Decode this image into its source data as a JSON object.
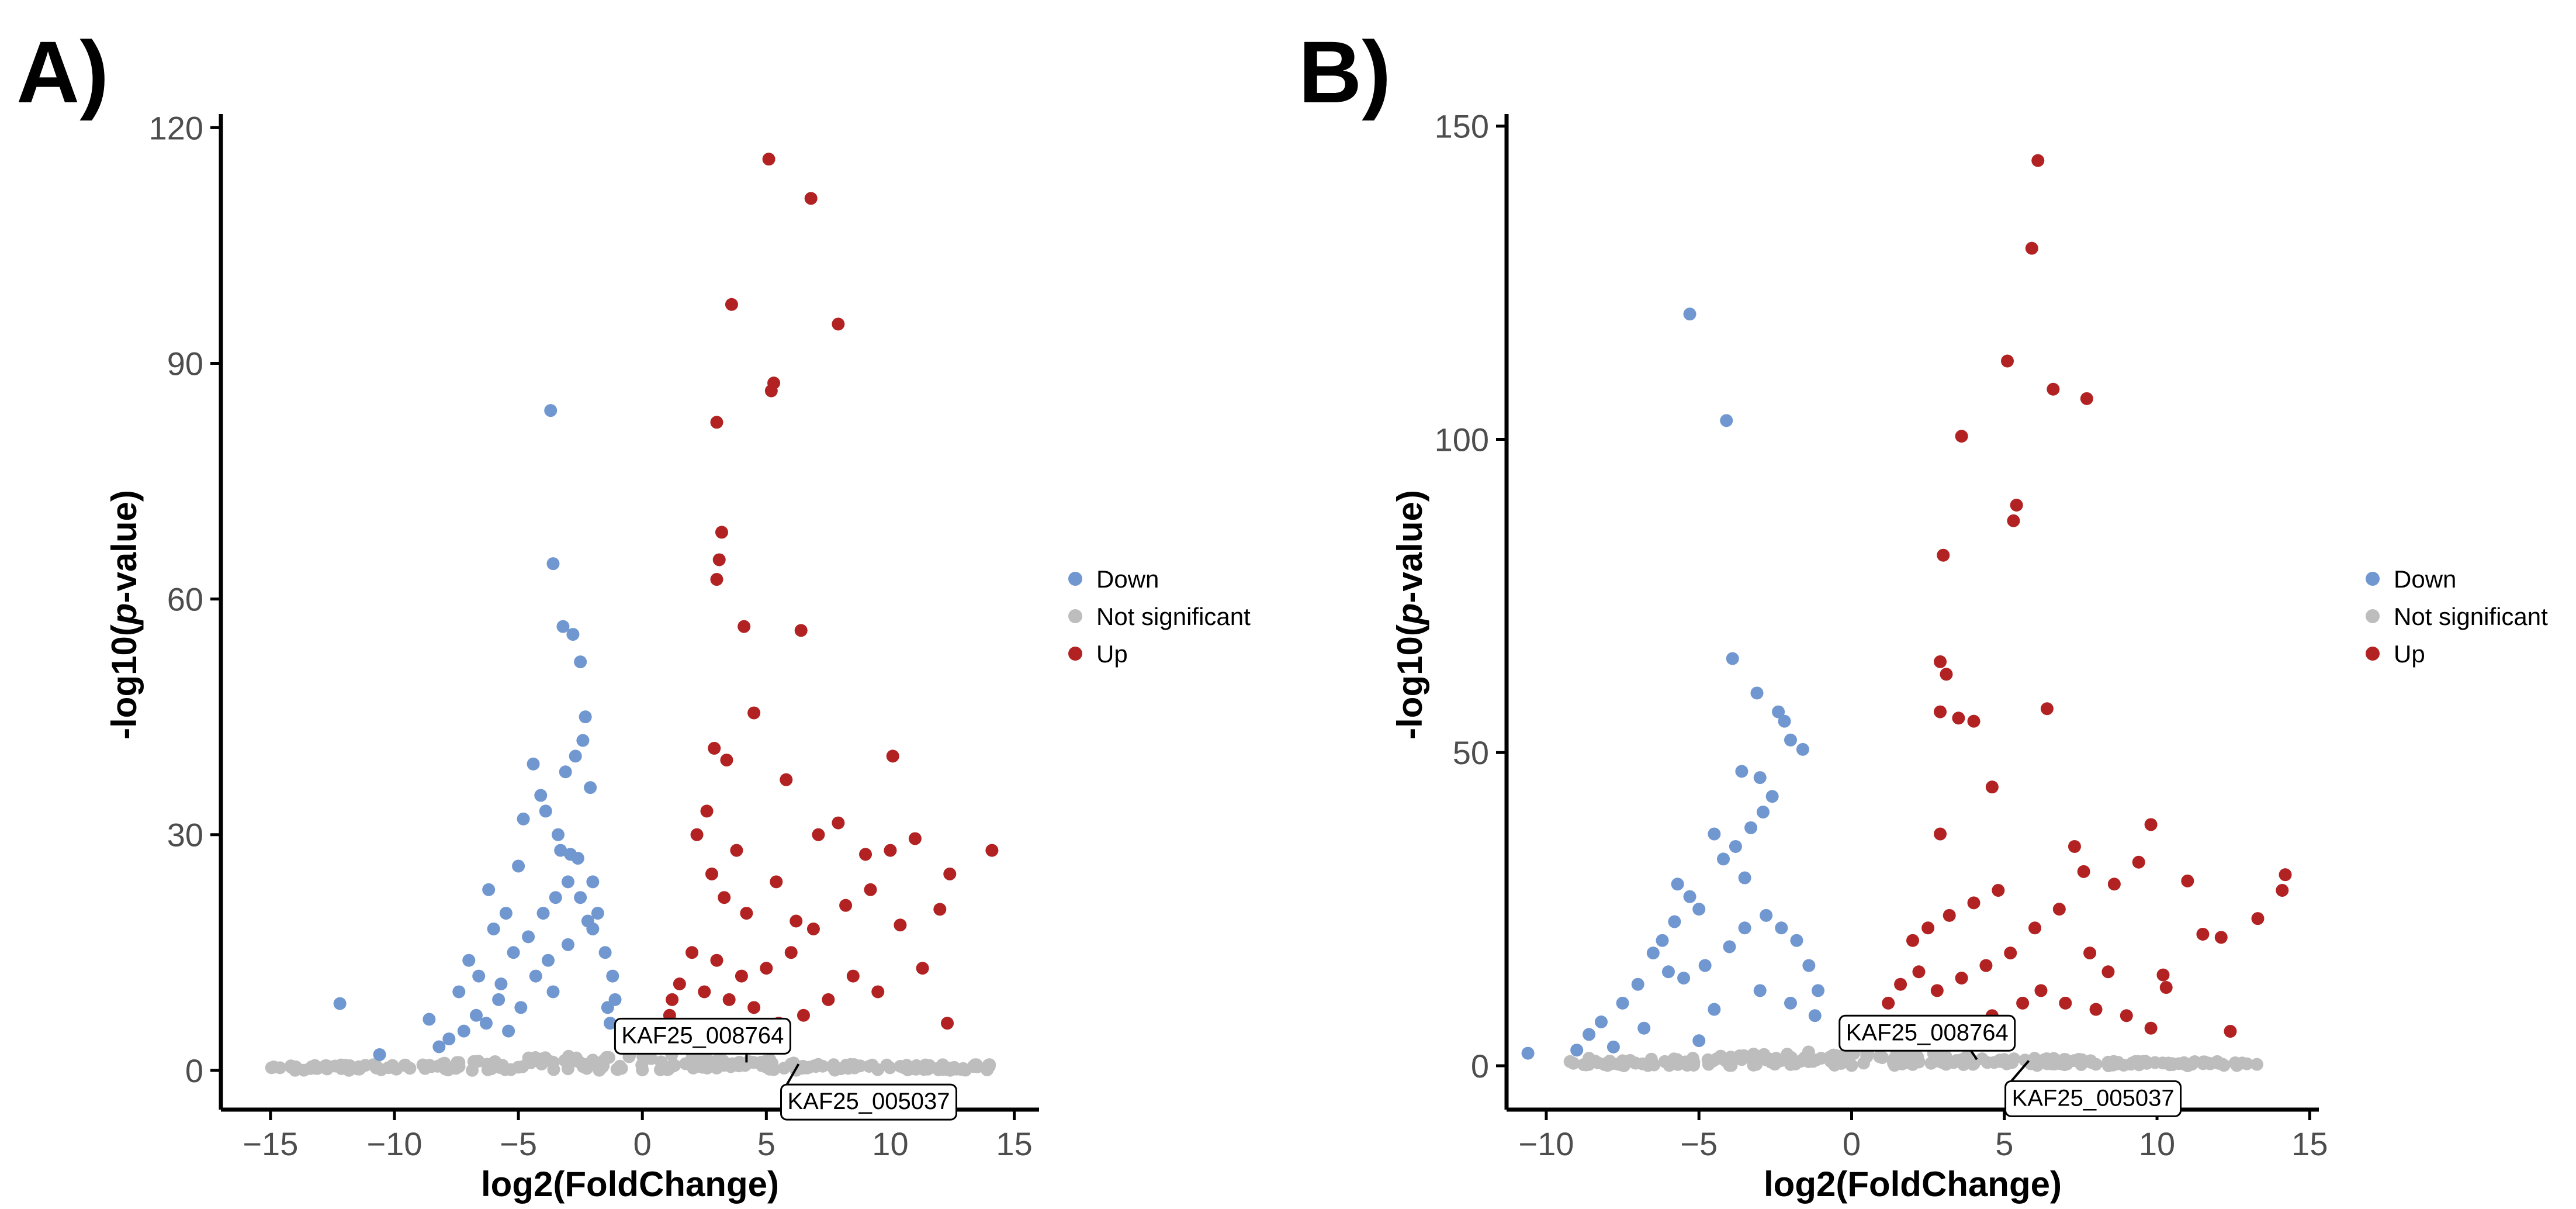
{
  "panels": [
    {
      "label": "A)"
    },
    {
      "label": "B)"
    }
  ],
  "colors": {
    "down": "#7097d0",
    "not_significant": "#bdbdbd",
    "up": "#b22222",
    "axis": "#000000",
    "tick_label": "#4d4d4d"
  },
  "chart_data": [
    {
      "type": "scatter",
      "title": "",
      "xlabel": "log2(FoldChange)",
      "ylabel_prefix": "-log10(",
      "ylabel_italic": "p",
      "ylabel_suffix": "-value)",
      "xlim": [
        -17,
        16
      ],
      "ylim": [
        -5,
        121
      ],
      "xticks": [
        -15,
        -10,
        -5,
        0,
        5,
        10,
        15
      ],
      "xtick_labels": [
        "−15",
        "−10",
        "−5",
        "0",
        "5",
        "10",
        "15"
      ],
      "yticks": [
        0,
        30,
        60,
        90,
        120
      ],
      "ytick_labels": [
        "0",
        "30",
        "60",
        "90",
        "120"
      ],
      "legend": {
        "position": "right",
        "entries": [
          "Down",
          "Not significant",
          "Up"
        ]
      },
      "annotations": [
        {
          "text": "KAF25_008764",
          "x": 4.2,
          "y": 1.0
        },
        {
          "text": "KAF25_005037",
          "x": 6.3,
          "y": 0.8
        }
      ],
      "series": [
        {
          "name": "Down",
          "points": [
            [
              -3.7,
              84
            ],
            [
              -3.6,
              64.5
            ],
            [
              -3.2,
              56.5
            ],
            [
              -2.8,
              55.5
            ],
            [
              -2.5,
              52
            ],
            [
              -2.3,
              45
            ],
            [
              -2.1,
              36
            ],
            [
              -2.7,
              40
            ],
            [
              -2.4,
              42
            ],
            [
              -3.1,
              38
            ],
            [
              -4.4,
              39
            ],
            [
              -4.1,
              35
            ],
            [
              -3.9,
              33
            ],
            [
              -4.8,
              32
            ],
            [
              -3.4,
              30
            ],
            [
              -5.0,
              26
            ],
            [
              -3.3,
              28
            ],
            [
              -2.9,
              27.5
            ],
            [
              -2.6,
              27
            ],
            [
              -2.0,
              24
            ],
            [
              -5.5,
              20
            ],
            [
              -6.0,
              18
            ],
            [
              -6.2,
              23
            ],
            [
              -7.0,
              14
            ],
            [
              -7.4,
              10
            ],
            [
              -6.6,
              12
            ],
            [
              -5.7,
              11
            ],
            [
              -12.2,
              8.5
            ],
            [
              -10.6,
              2
            ],
            [
              -8.6,
              6.5
            ],
            [
              -8.2,
              3
            ],
            [
              -7.8,
              4
            ],
            [
              -7.2,
              5
            ],
            [
              -6.7,
              7
            ],
            [
              -5.2,
              15
            ],
            [
              -4.6,
              17
            ],
            [
              -4.0,
              20
            ],
            [
              -3.5,
              22
            ],
            [
              -3.0,
              24
            ],
            [
              -2.5,
              22
            ],
            [
              -2.0,
              18
            ],
            [
              -1.5,
              15
            ],
            [
              -1.2,
              12
            ],
            [
              -1.1,
              9
            ],
            [
              -4.3,
              12
            ],
            [
              -3.8,
              14
            ],
            [
              -3.0,
              16
            ],
            [
              -2.2,
              19
            ],
            [
              -1.8,
              20
            ],
            [
              -1.4,
              8
            ],
            [
              -1.3,
              6
            ],
            [
              -5.8,
              9
            ],
            [
              -6.3,
              6
            ],
            [
              -4.9,
              8
            ],
            [
              -5.4,
              5
            ],
            [
              -3.6,
              10
            ]
          ]
        },
        {
          "name": "Not significant",
          "points": [
            [
              -7.4,
              1.0
            ],
            [
              -6.2,
              0.6
            ],
            [
              -5.0,
              0.4
            ],
            [
              -3.0,
              0.2
            ],
            [
              -1.0,
              0.1
            ],
            [
              1.0,
              0.1
            ],
            [
              3.0,
              0.3
            ],
            [
              5.0,
              0.4
            ],
            [
              6.0,
              0.8
            ],
            [
              -4.0,
              1.5
            ],
            [
              2.0,
              1.2
            ],
            [
              -2.0,
              1.3
            ],
            [
              4.5,
              1.0
            ],
            [
              7.0,
              0.5
            ],
            [
              0.0,
              0.05
            ]
          ]
        },
        {
          "name": "Up",
          "points": [
            [
              5.1,
              116
            ],
            [
              6.8,
              111
            ],
            [
              3.6,
              97.5
            ],
            [
              7.9,
              95
            ],
            [
              5.3,
              87.5
            ],
            [
              5.2,
              86.5
            ],
            [
              3.0,
              82.5
            ],
            [
              3.2,
              68.5
            ],
            [
              3.1,
              65
            ],
            [
              3.0,
              62.5
            ],
            [
              4.1,
              56.5
            ],
            [
              6.4,
              56
            ],
            [
              4.5,
              45.5
            ],
            [
              2.9,
              41
            ],
            [
              3.4,
              39.5
            ],
            [
              10.1,
              40
            ],
            [
              5.8,
              37
            ],
            [
              14.1,
              28
            ],
            [
              11.0,
              29.5
            ],
            [
              12.4,
              25
            ],
            [
              10.0,
              28
            ],
            [
              9.0,
              27.5
            ],
            [
              7.9,
              31.5
            ],
            [
              7.1,
              30
            ],
            [
              12.0,
              20.5
            ],
            [
              10.4,
              18.5
            ],
            [
              11.3,
              13
            ],
            [
              12.3,
              6
            ],
            [
              9.2,
              23
            ],
            [
              8.2,
              21
            ],
            [
              6.9,
              18
            ],
            [
              6.0,
              15
            ],
            [
              5.0,
              13
            ],
            [
              4.0,
              12
            ],
            [
              3.0,
              14
            ],
            [
              2.0,
              15
            ],
            [
              1.5,
              11
            ],
            [
              1.2,
              9
            ],
            [
              1.1,
              7
            ],
            [
              1.0,
              5
            ],
            [
              2.5,
              10
            ],
            [
              3.5,
              9
            ],
            [
              4.5,
              8
            ],
            [
              5.5,
              6
            ],
            [
              6.5,
              7
            ],
            [
              7.5,
              9
            ],
            [
              8.5,
              12
            ],
            [
              9.5,
              10
            ],
            [
              2.2,
              30
            ],
            [
              2.8,
              25
            ],
            [
              3.3,
              22
            ],
            [
              4.2,
              20
            ],
            [
              5.4,
              24
            ],
            [
              6.2,
              19
            ],
            [
              2.6,
              33
            ],
            [
              3.8,
              28
            ]
          ]
        }
      ]
    },
    {
      "type": "scatter",
      "title": "",
      "xlabel": "log2(FoldChange)",
      "ylabel_prefix": "-log10(",
      "ylabel_italic": "p",
      "ylabel_suffix": "-value)",
      "xlim": [
        -11.3,
        15.3
      ],
      "ylim": [
        -7,
        151
      ],
      "xticks": [
        -10,
        -5,
        0,
        5,
        10,
        15
      ],
      "xtick_labels": [
        "−10",
        "−5",
        "0",
        "5",
        "10",
        "15"
      ],
      "yticks": [
        0,
        50,
        100,
        150
      ],
      "ytick_labels": [
        "0",
        "50",
        "100",
        "150"
      ],
      "legend": {
        "position": "right",
        "entries": [
          "Down",
          "Not significant",
          "Up"
        ]
      },
      "annotations": [
        {
          "text": "KAF25_008764",
          "x": 4.1,
          "y": 1.0
        },
        {
          "text": "KAF25_005037",
          "x": 5.8,
          "y": 0.8
        }
      ],
      "series": [
        {
          "name": "Down",
          "points": [
            [
              -5.3,
              120
            ],
            [
              -4.1,
              103
            ],
            [
              -3.9,
              65
            ],
            [
              -3.1,
              59.5
            ],
            [
              -2.4,
              56.5
            ],
            [
              -2.2,
              55
            ],
            [
              -2.0,
              52
            ],
            [
              -1.6,
              50.5
            ],
            [
              -3.6,
              47
            ],
            [
              -3.0,
              46
            ],
            [
              -2.6,
              43
            ],
            [
              -2.9,
              40.5
            ],
            [
              -3.3,
              38
            ],
            [
              -4.5,
              37
            ],
            [
              -4.2,
              33
            ],
            [
              -3.8,
              35
            ],
            [
              -3.5,
              30
            ],
            [
              -5.7,
              29
            ],
            [
              -5.3,
              27
            ],
            [
              -5.0,
              25
            ],
            [
              -5.8,
              23
            ],
            [
              -6.2,
              20
            ],
            [
              -6.5,
              18
            ],
            [
              -7.0,
              13
            ],
            [
              -7.5,
              10
            ],
            [
              -8.2,
              7
            ],
            [
              -8.6,
              5
            ],
            [
              -10.6,
              2
            ],
            [
              -6.0,
              15
            ],
            [
              -5.5,
              14
            ],
            [
              -4.8,
              16
            ],
            [
              -4.0,
              19
            ],
            [
              -3.5,
              22
            ],
            [
              -2.8,
              24
            ],
            [
              -2.3,
              22
            ],
            [
              -1.8,
              20
            ],
            [
              -1.4,
              16
            ],
            [
              -1.1,
              12
            ],
            [
              -1.2,
              8
            ],
            [
              -2.0,
              10
            ],
            [
              -3.0,
              12
            ],
            [
              -4.5,
              9
            ],
            [
              -6.8,
              6
            ],
            [
              -7.8,
              3
            ],
            [
              -9.0,
              2.5
            ],
            [
              -5.0,
              4
            ]
          ]
        },
        {
          "name": "Not significant",
          "points": [
            [
              -8.6,
              1.2
            ],
            [
              -7.5,
              0.8
            ],
            [
              -6.0,
              0.5
            ],
            [
              -4.0,
              0.3
            ],
            [
              -2.0,
              0.2
            ],
            [
              0.0,
              0.05
            ],
            [
              2.0,
              0.2
            ],
            [
              4.0,
              0.3
            ],
            [
              6.0,
              0.5
            ],
            [
              7.0,
              1.0
            ],
            [
              -3.0,
              1.5
            ],
            [
              3.0,
              1.6
            ],
            [
              -1.0,
              1.2
            ],
            [
              1.0,
              1.3
            ],
            [
              5.0,
              1.0
            ]
          ]
        },
        {
          "name": "Up",
          "points": [
            [
              6.1,
              144.5
            ],
            [
              5.9,
              130.5
            ],
            [
              5.1,
              112.5
            ],
            [
              6.6,
              108
            ],
            [
              7.7,
              106.5
            ],
            [
              3.6,
              100.5
            ],
            [
              5.4,
              89.5
            ],
            [
              5.3,
              87
            ],
            [
              3.0,
              81.5
            ],
            [
              2.9,
              64.5
            ],
            [
              3.1,
              62.5
            ],
            [
              6.4,
              57
            ],
            [
              2.9,
              56.5
            ],
            [
              3.5,
              55.5
            ],
            [
              4.0,
              55
            ],
            [
              4.6,
              44.5
            ],
            [
              2.9,
              37
            ],
            [
              7.3,
              35
            ],
            [
              9.8,
              38.5
            ],
            [
              14.2,
              30.5
            ],
            [
              14.1,
              28
            ],
            [
              11.0,
              29.5
            ],
            [
              13.3,
              23.5
            ],
            [
              12.1,
              20.5
            ],
            [
              11.5,
              21
            ],
            [
              12.4,
              5.5
            ],
            [
              10.2,
              14.5
            ],
            [
              10.3,
              12.5
            ],
            [
              9.4,
              32.5
            ],
            [
              8.6,
              29
            ],
            [
              7.6,
              31
            ],
            [
              6.8,
              25
            ],
            [
              6.0,
              22
            ],
            [
              5.2,
              18
            ],
            [
              4.4,
              16
            ],
            [
              3.6,
              14
            ],
            [
              2.8,
              12
            ],
            [
              2.2,
              15
            ],
            [
              1.6,
              13
            ],
            [
              1.2,
              10
            ],
            [
              1.1,
              7
            ],
            [
              1.0,
              5
            ],
            [
              2.0,
              20
            ],
            [
              2.5,
              22
            ],
            [
              3.2,
              24
            ],
            [
              4.0,
              26
            ],
            [
              4.8,
              28
            ],
            [
              6.2,
              12
            ],
            [
              7.0,
              10
            ],
            [
              8.0,
              9
            ],
            [
              9.0,
              8
            ],
            [
              9.8,
              6
            ],
            [
              8.4,
              15
            ],
            [
              7.8,
              18
            ],
            [
              5.6,
              10
            ],
            [
              4.6,
              8
            ]
          ]
        }
      ]
    }
  ]
}
